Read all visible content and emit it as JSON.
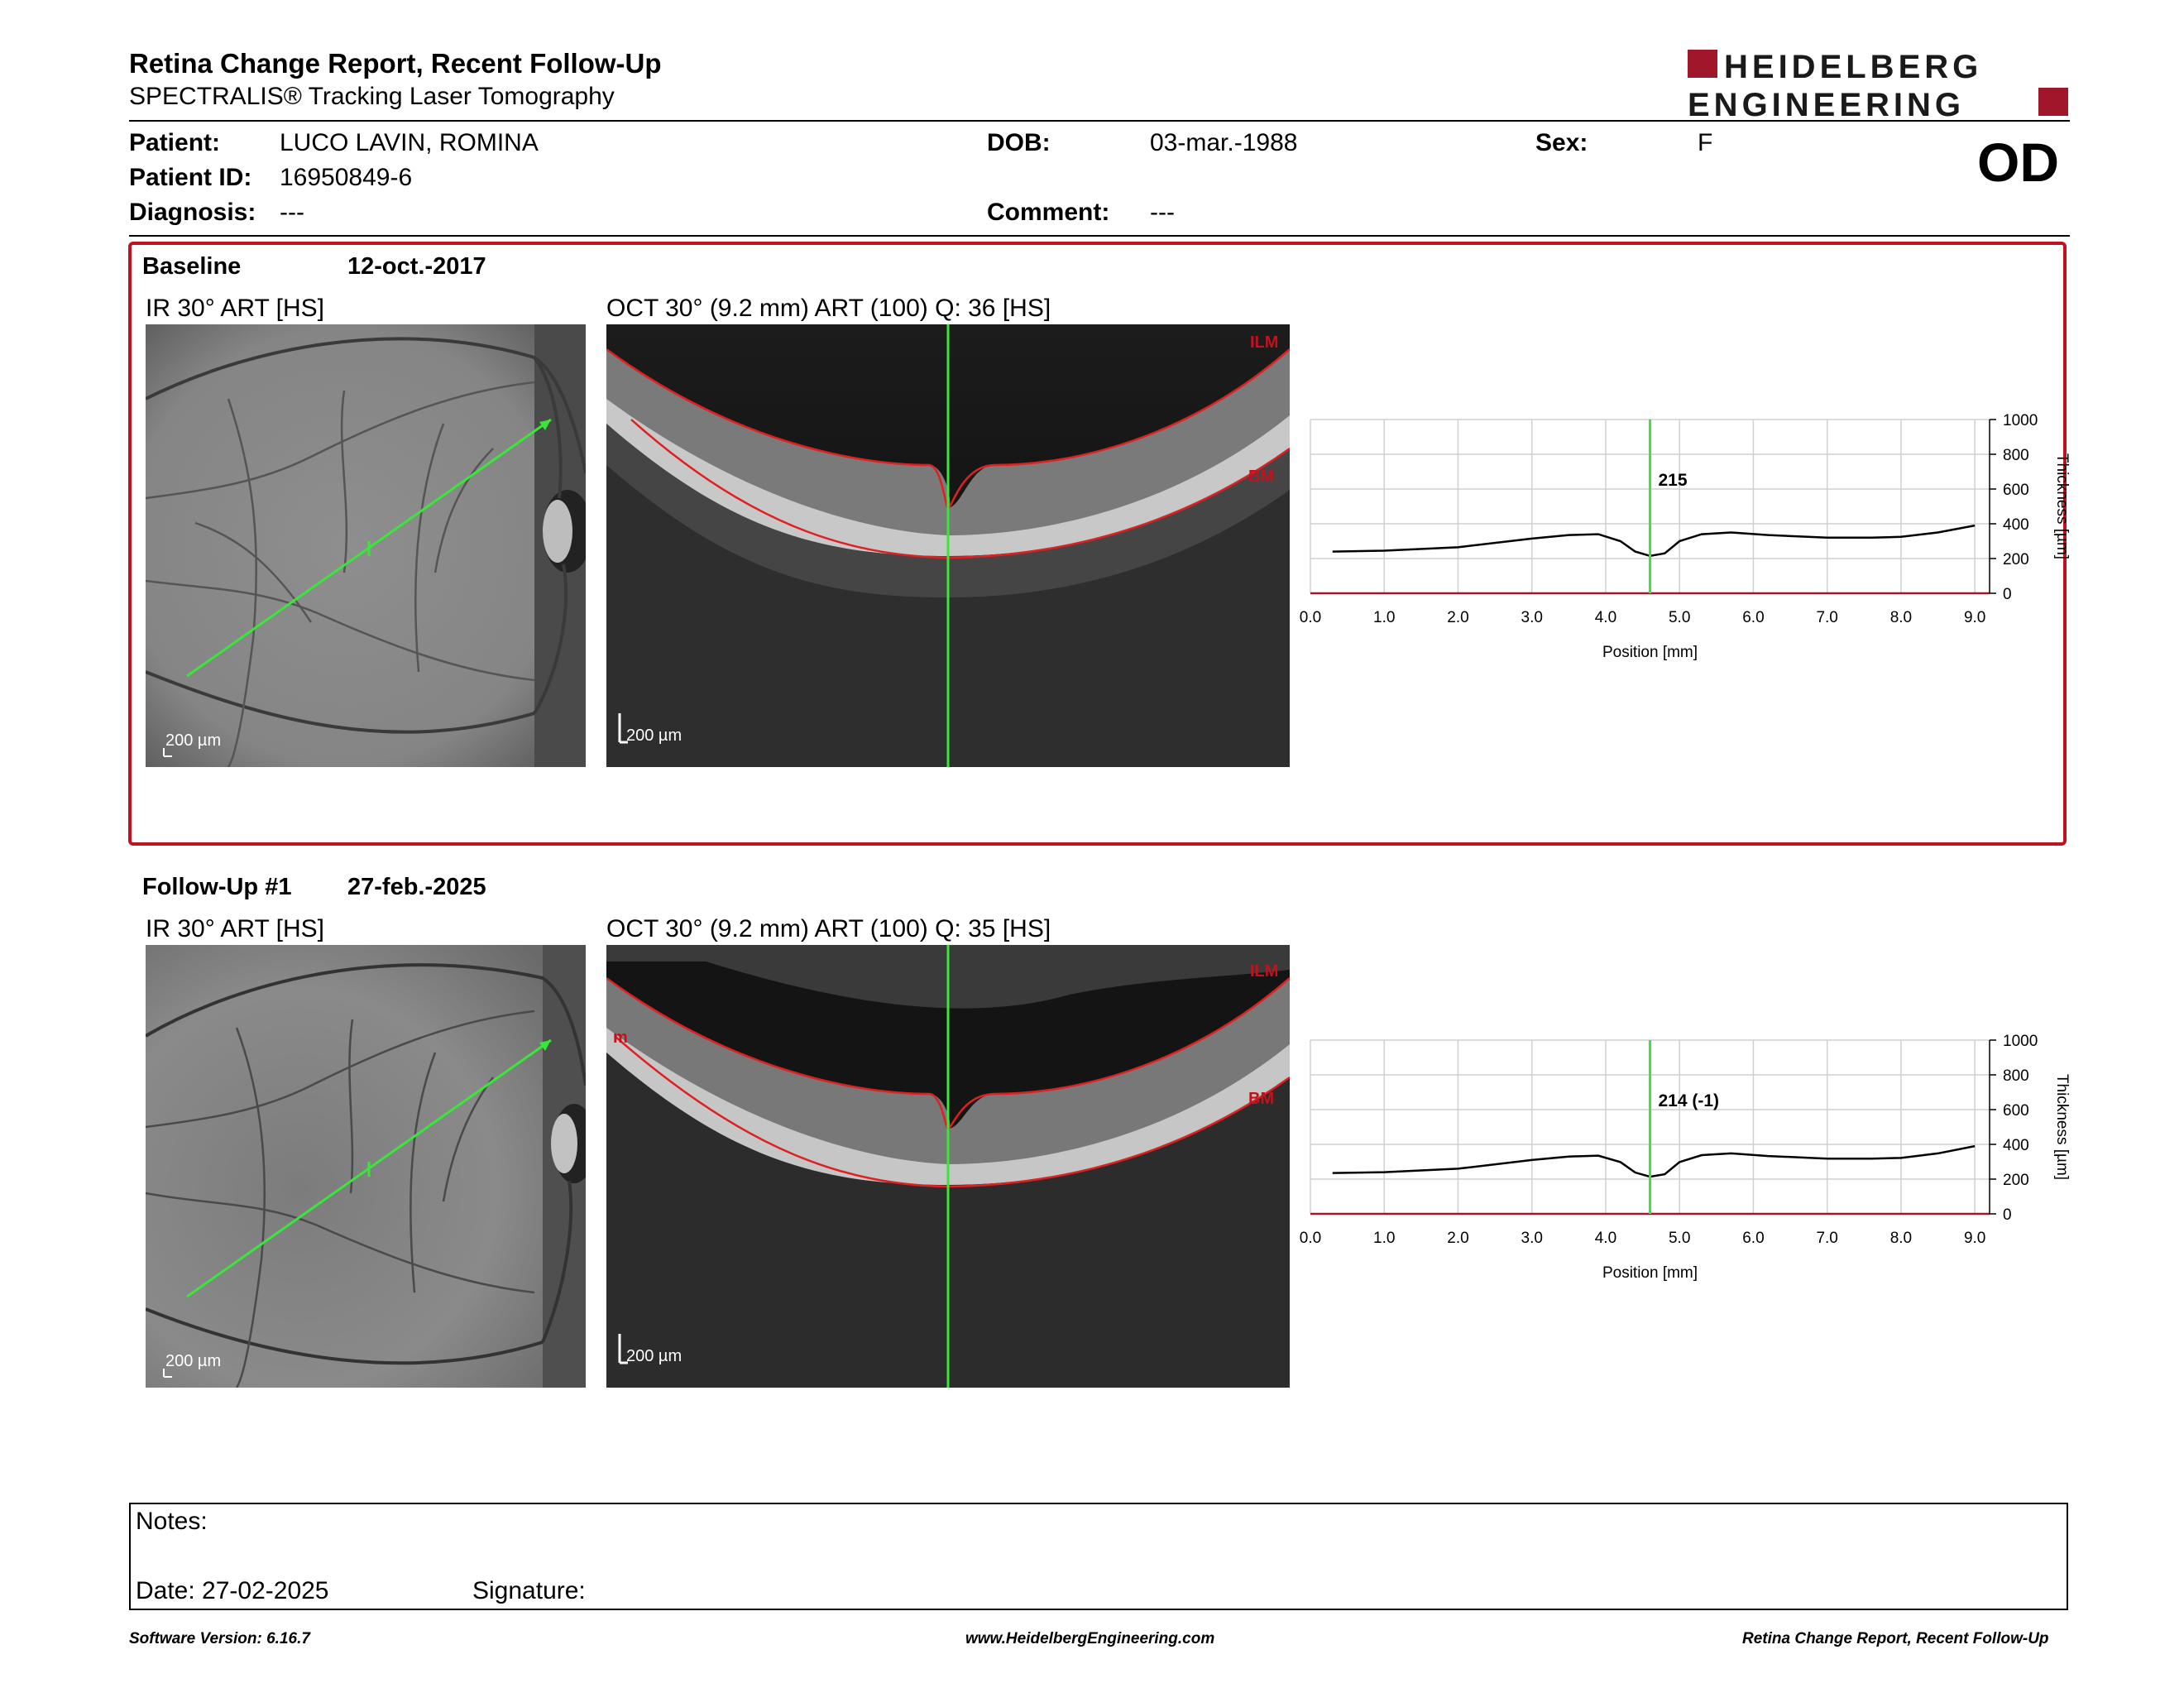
{
  "header": {
    "title": "Retina Change Report, Recent Follow-Up",
    "subtitle": "SPECTRALIS® Tracking Laser Tomography",
    "logo_line1": "HEIDELBERG",
    "logo_line2": "ENGINEERING",
    "brand_color": "#a0172b"
  },
  "patient": {
    "patient_label": "Patient:",
    "patient_value": "LUCO LAVIN, ROMINA",
    "id_label": "Patient ID:",
    "id_value": "16950849-6",
    "diagnosis_label": "Diagnosis:",
    "diagnosis_value": "---",
    "dob_label": "DOB:",
    "dob_value": "03-mar.-1988",
    "comment_label": "Comment:",
    "comment_value": "---",
    "sex_label": "Sex:",
    "sex_value": "F",
    "eye": "OD"
  },
  "baseline": {
    "label": "Baseline",
    "date": "12-oct.-2017",
    "ir_title": "IR 30° ART [HS]",
    "oct_title": "OCT 30° (9.2 mm) ART (100) Q: 36 [HS]",
    "ir_scale": "200 µm",
    "oct_scale": "200 µm",
    "ilm_label": "ILM",
    "bm_label": "BM"
  },
  "followup": {
    "label": "Follow-Up #1",
    "date": "27-feb.-2025",
    "ir_title": "IR 30° ART [HS]",
    "oct_title": "OCT 30° (9.2 mm) ART (100) Q: 35 [HS]",
    "ir_scale": "200 µm",
    "oct_scale": "200 µm",
    "ilm_label": "ILM",
    "bm_label": "BM",
    "side_label": "m"
  },
  "chart_data": [
    {
      "type": "line",
      "name": "baseline-thickness",
      "xlabel": "Position [mm]",
      "ylabel": "Thickness [µm]",
      "xlim": [
        0,
        9.2
      ],
      "ylim": [
        0,
        1000
      ],
      "xticks": [
        "0.0",
        "1.0",
        "2.0",
        "3.0",
        "4.0",
        "5.0",
        "6.0",
        "7.0",
        "8.0",
        "9.0"
      ],
      "yticks": [
        "0",
        "200",
        "400",
        "600",
        "800",
        "1000"
      ],
      "marker_x": 4.6,
      "marker_label": "215",
      "grid": true,
      "x": [
        0.3,
        1.0,
        2.0,
        3.0,
        3.5,
        3.9,
        4.2,
        4.4,
        4.6,
        4.8,
        5.0,
        5.3,
        5.7,
        6.2,
        7.0,
        7.6,
        8.0,
        8.5,
        9.0
      ],
      "y": [
        240,
        245,
        265,
        315,
        335,
        340,
        300,
        240,
        215,
        230,
        300,
        340,
        350,
        335,
        320,
        320,
        325,
        350,
        390
      ]
    },
    {
      "type": "line",
      "name": "followup-thickness",
      "xlabel": "Position [mm]",
      "ylabel": "Thickness [µm]",
      "xlim": [
        0,
        9.2
      ],
      "ylim": [
        0,
        1000
      ],
      "xticks": [
        "0.0",
        "1.0",
        "2.0",
        "3.0",
        "4.0",
        "5.0",
        "6.0",
        "7.0",
        "8.0",
        "9.0"
      ],
      "yticks": [
        "0",
        "200",
        "400",
        "600",
        "800",
        "1000"
      ],
      "marker_x": 4.6,
      "marker_label": "214 (-1)",
      "grid": true,
      "x": [
        0.3,
        1.0,
        2.0,
        3.0,
        3.5,
        3.9,
        4.2,
        4.4,
        4.6,
        4.8,
        5.0,
        5.3,
        5.7,
        6.2,
        7.0,
        7.6,
        8.0,
        8.5,
        9.0
      ],
      "y": [
        235,
        240,
        260,
        310,
        330,
        335,
        298,
        238,
        214,
        228,
        298,
        338,
        348,
        333,
        318,
        318,
        322,
        348,
        390
      ]
    }
  ],
  "notes": {
    "notes_label": "Notes:",
    "date_label": "Date: 27-02-2025",
    "signature_label": "Signature:"
  },
  "footer": {
    "left": "Software Version: 6.16.7",
    "center": "www.HeidelbergEngineering.com",
    "right": "Retina Change Report, Recent Follow-Up"
  }
}
